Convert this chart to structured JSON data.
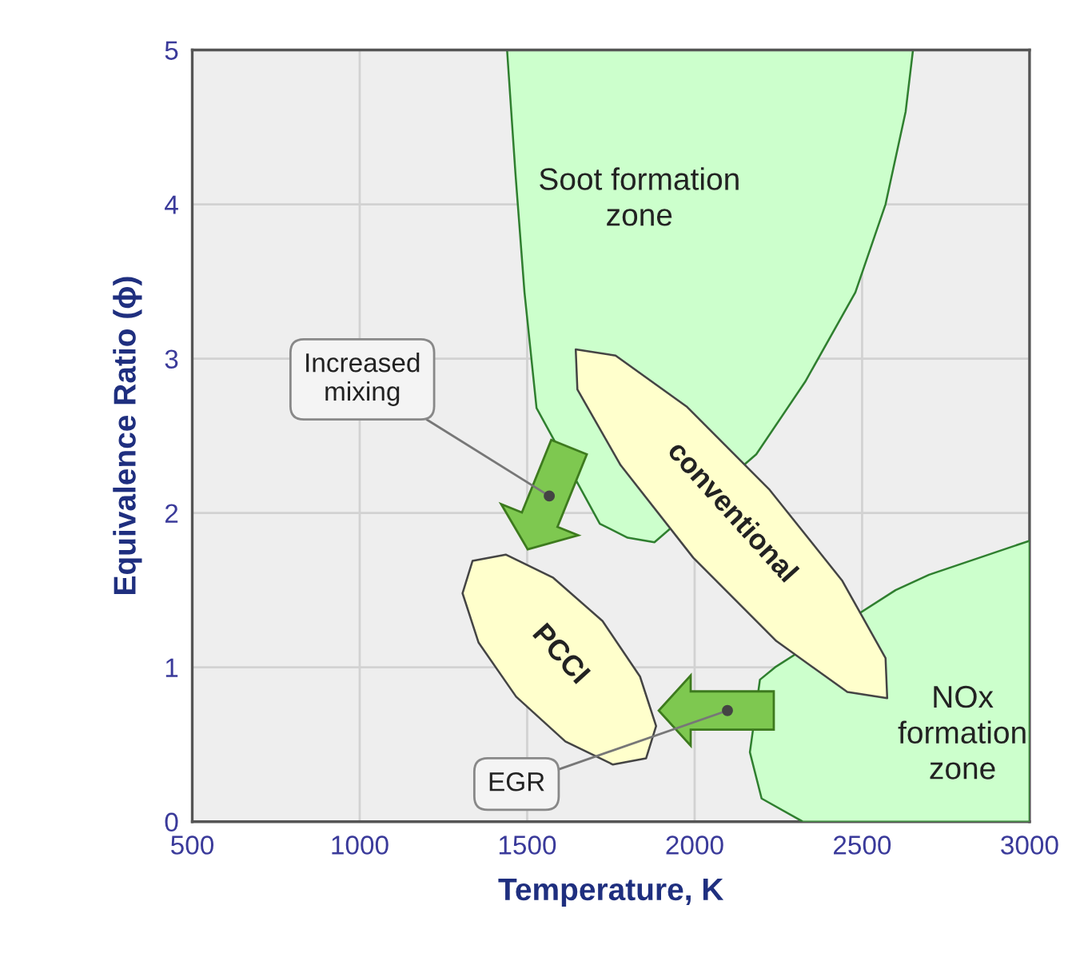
{
  "chart_data": {
    "type": "area",
    "xlabel": "Temperature, K",
    "ylabel": "Equivalence Ratio (ϕ)",
    "xlim": [
      500,
      3000
    ],
    "xticks": [
      500,
      1000,
      1500,
      2000,
      2500,
      3000
    ],
    "ylim": [
      0,
      5
    ],
    "yticks": [
      0,
      1,
      2,
      3,
      4,
      5
    ],
    "grid": true,
    "series": [
      {
        "color": "#ccffcc",
        "x": [
          1440,
          1465,
          1492,
          1528,
          1717,
          1800,
          1880,
          2184,
          2330,
          2480,
          2570,
          2630,
          2652
        ],
        "values": [
          5,
          4.2,
          3.43,
          2.68,
          1.93,
          1.84,
          1.81,
          2.38,
          2.85,
          3.43,
          4.0,
          4.6,
          5
        ]
      },
      {
        "color": "#ccffcc",
        "x": [
          2323,
          2200,
          2165,
          2195,
          2240,
          2600,
          2700,
          3000,
          3000
        ],
        "values": [
          0,
          0.15,
          0.45,
          0.92,
          1.0,
          1.5,
          1.6,
          1.82,
          0
        ]
      },
      {
        "color": "#ffffcc",
        "x": [
          2575,
          2570,
          2441,
          2224,
          1976,
          1764,
          1645,
          1650,
          1779,
          1996,
          2244,
          2456
        ],
        "values": [
          0.8,
          1.06,
          1.56,
          2.15,
          2.69,
          3.02,
          3.06,
          2.8,
          2.31,
          1.71,
          1.17,
          0.84
        ]
      },
      {
        "color": "#ffffcc",
        "x": [
          1855,
          1885,
          1837,
          1725,
          1578,
          1436,
          1337,
          1307,
          1355,
          1467,
          1614,
          1756
        ],
        "values": [
          0.41,
          0.62,
          0.94,
          1.3,
          1.58,
          1.73,
          1.69,
          1.48,
          1.16,
          0.81,
          0.52,
          0.37
        ]
      }
    ],
    "annotations": [
      "Soot formation\nzone",
      "NOx\nformation\nzone",
      "conventional",
      "PCCI",
      {
        "text": "Increased\nmixing",
        "x": 1566,
        "y": 2.11
      },
      {
        "text": "EGR",
        "x": 2098,
        "y": 0.72
      }
    ]
  }
}
